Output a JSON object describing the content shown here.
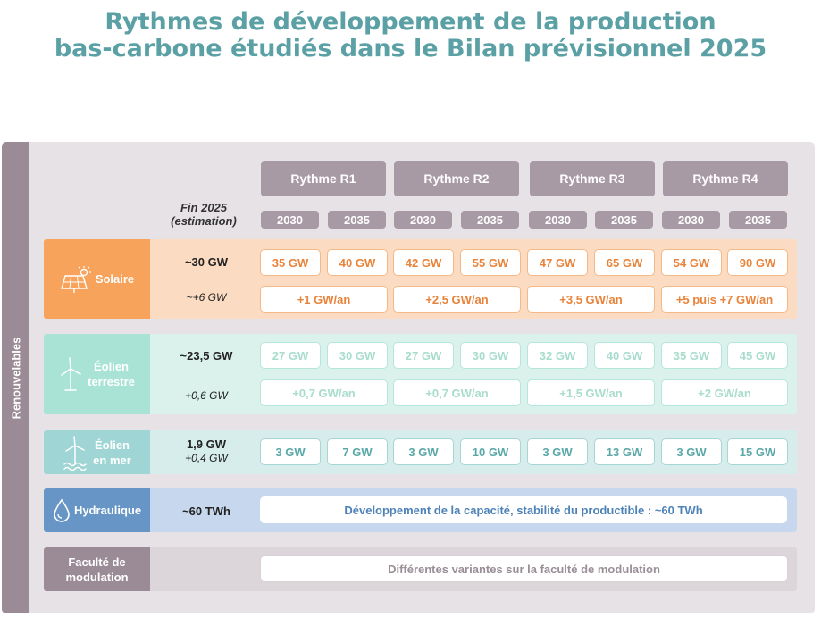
{
  "title": {
    "line1": "Rythmes de développement de la production",
    "line2": "bas-carbone étudiés dans le Bilan prévisionnel 2025"
  },
  "sidebar_label": "Renouvelables",
  "fin_label": {
    "line1": "Fin 2025",
    "line2": "(estimation)"
  },
  "rythmes": [
    {
      "label": "Rythme R1",
      "years": [
        "2030",
        "2035"
      ]
    },
    {
      "label": "Rythme R2",
      "years": [
        "2030",
        "2035"
      ]
    },
    {
      "label": "Rythme R3",
      "years": [
        "2030",
        "2035"
      ]
    },
    {
      "label": "Rythme R4",
      "years": [
        "2030",
        "2035"
      ]
    }
  ],
  "rows": {
    "solaire": {
      "label": "Solaire",
      "icon": "solar-panel-icon",
      "fin2025": "~30 GW",
      "rate": "~+6 GW",
      "values": [
        "35 GW",
        "40 GW",
        "42 GW",
        "55 GW",
        "47 GW",
        "65 GW",
        "54 GW",
        "90 GW"
      ],
      "rates": [
        "+1 GW/an",
        "+2,5 GW/an",
        "+3,5 GW/an",
        "+5 puis +7 GW/an"
      ]
    },
    "eolien_terrestre": {
      "label1": "Éolien",
      "label2": "terrestre",
      "icon": "wind-turbine-icon",
      "fin2025": "~23,5 GW",
      "rate": "+0,6 GW",
      "values": [
        "27 GW",
        "30 GW",
        "27 GW",
        "30 GW",
        "32 GW",
        "40 GW",
        "35 GW",
        "45 GW"
      ],
      "rates": [
        "+0,7 GW/an",
        "+0,7 GW/an",
        "+1,5 GW/an",
        "+2 GW/an"
      ]
    },
    "eolien_mer": {
      "label1": "Éolien",
      "label2": "en mer",
      "icon": "offshore-wind-icon",
      "fin2025": "1,9 GW",
      "rate": "+0,4 GW",
      "values": [
        "3 GW",
        "7 GW",
        "3 GW",
        "10 GW",
        "3 GW",
        "13 GW",
        "3 GW",
        "15 GW"
      ]
    },
    "hydraulique": {
      "label": "Hydraulique",
      "icon": "water-drop-icon",
      "fin2025": "~60 TWh",
      "note": "Développement de la capacité, stabilité du productible : ~60 TWh"
    },
    "modulation": {
      "label1": "Faculté de",
      "label2": "modulation",
      "note": "Différentes variantes sur la faculté de modulation"
    }
  },
  "colors": {
    "title": "#5aa0a5",
    "solaire": "#f7a35b",
    "eolien_terrestre": "#a9e3d6",
    "eolien_mer": "#9fd5d5",
    "hydraulique": "#6796c6",
    "modulation": "#9b8b96"
  }
}
